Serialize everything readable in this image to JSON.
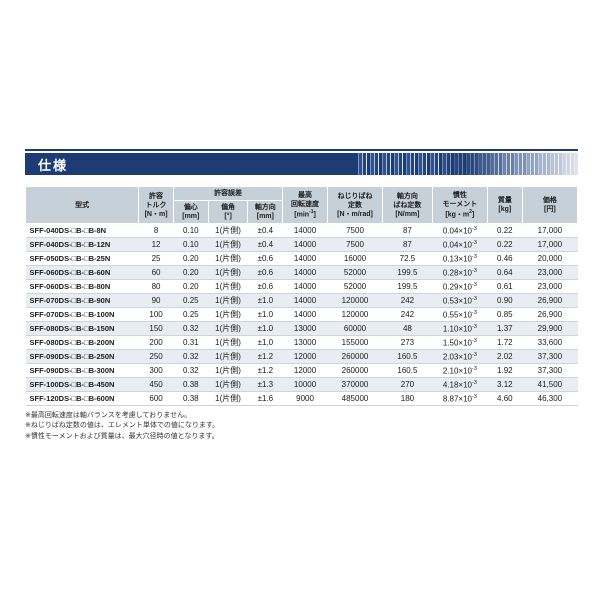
{
  "page": {
    "title": "仕様"
  },
  "colors": {
    "accent_navy": "#1e3c74",
    "header_bg": "#c6d0d9",
    "row_shade": "#e9edf2"
  },
  "table": {
    "headers": {
      "model": "型式",
      "torque": "許容\nトルク\n[N・m]",
      "tolerance_group": "許容誤差",
      "eccentricity": "偏心\n[mm]",
      "angular": "偏角\n[°]",
      "axial": "軸方向\n[mm]",
      "max_speed": "最高\n回転速度\n[min^{-1}]",
      "torsional_spring": "ねじりばね\n定数\n[N・m/rad]",
      "axial_spring": "軸方向\nばね定数\n[N/mm]",
      "inertia": "慣性\nモーメント\n[kg・m^{2}]",
      "mass": "質量\n[kg]",
      "price": "価格\n[円]"
    },
    "rows": [
      {
        "model": "SFF-040DS-□B-□B-8N",
        "torque": "8",
        "eccentricity": "0.10",
        "angular": "1(片側)",
        "axial": "±0.4",
        "max_speed": "14000",
        "torsional_spring": "7500",
        "axial_spring": "87",
        "inertia": "0.04×10^{-3}",
        "mass": "0.22",
        "price": "17,000"
      },
      {
        "model": "SFF-040DS-□B-□B-12N",
        "torque": "12",
        "eccentricity": "0.10",
        "angular": "1(片側)",
        "axial": "±0.4",
        "max_speed": "14000",
        "torsional_spring": "7500",
        "axial_spring": "87",
        "inertia": "0.04×10^{-3}",
        "mass": "0.22",
        "price": "17,000"
      },
      {
        "model": "SFF-050DS-□B-□B-25N",
        "torque": "25",
        "eccentricity": "0.20",
        "angular": "1(片側)",
        "axial": "±0.6",
        "max_speed": "14000",
        "torsional_spring": "16000",
        "axial_spring": "72.5",
        "inertia": "0.13×10^{-3}",
        "mass": "0.46",
        "price": "20,000"
      },
      {
        "model": "SFF-060DS-□B-□B-60N",
        "torque": "60",
        "eccentricity": "0.20",
        "angular": "1(片側)",
        "axial": "±0.6",
        "max_speed": "14000",
        "torsional_spring": "52000",
        "axial_spring": "199.5",
        "inertia": "0.28×10^{-3}",
        "mass": "0.64",
        "price": "23,000"
      },
      {
        "model": "SFF-060DS-□B-□B-80N",
        "torque": "80",
        "eccentricity": "0.20",
        "angular": "1(片側)",
        "axial": "±0.6",
        "max_speed": "14000",
        "torsional_spring": "52000",
        "axial_spring": "199.5",
        "inertia": "0.29×10^{-3}",
        "mass": "0.61",
        "price": "23,000"
      },
      {
        "model": "SFF-070DS-□B-□B-90N",
        "torque": "90",
        "eccentricity": "0.25",
        "angular": "1(片側)",
        "axial": "±1.0",
        "max_speed": "14000",
        "torsional_spring": "120000",
        "axial_spring": "242",
        "inertia": "0.53×10^{-3}",
        "mass": "0.90",
        "price": "26,900"
      },
      {
        "model": "SFF-070DS-□B-□B-100N",
        "torque": "100",
        "eccentricity": "0.25",
        "angular": "1(片側)",
        "axial": "±1.0",
        "max_speed": "14000",
        "torsional_spring": "120000",
        "axial_spring": "242",
        "inertia": "0.55×10^{-3}",
        "mass": "0.85",
        "price": "26,900"
      },
      {
        "model": "SFF-080DS-□B-□B-150N",
        "torque": "150",
        "eccentricity": "0.32",
        "angular": "1(片側)",
        "axial": "±1.0",
        "max_speed": "13000",
        "torsional_spring": "60000",
        "axial_spring": "48",
        "inertia": "1.10×10^{-3}",
        "mass": "1.37",
        "price": "29,900"
      },
      {
        "model": "SFF-080DS-□B-□B-200N",
        "torque": "200",
        "eccentricity": "0.31",
        "angular": "1(片側)",
        "axial": "±1.0",
        "max_speed": "13000",
        "torsional_spring": "155000",
        "axial_spring": "273",
        "inertia": "1.50×10^{-3}",
        "mass": "1.72",
        "price": "33,600"
      },
      {
        "model": "SFF-090DS-□B-□B-250N",
        "torque": "250",
        "eccentricity": "0.32",
        "angular": "1(片側)",
        "axial": "±1.2",
        "max_speed": "12000",
        "torsional_spring": "260000",
        "axial_spring": "160.5",
        "inertia": "2.03×10^{-3}",
        "mass": "2.02",
        "price": "37,300"
      },
      {
        "model": "SFF-090DS-□B-□B-300N",
        "torque": "300",
        "eccentricity": "0.32",
        "angular": "1(片側)",
        "axial": "±1.2",
        "max_speed": "12000",
        "torsional_spring": "260000",
        "axial_spring": "160.5",
        "inertia": "2.10×10^{-3}",
        "mass": "1.92",
        "price": "37,300"
      },
      {
        "model": "SFF-100DS-□B-□B-450N",
        "torque": "450",
        "eccentricity": "0.38",
        "angular": "1(片側)",
        "axial": "±1.3",
        "max_speed": "10000",
        "torsional_spring": "370000",
        "axial_spring": "270",
        "inertia": "4.18×10^{-3}",
        "mass": "3.12",
        "price": "41,500"
      },
      {
        "model": "SFF-120DS-□B-□B-600N",
        "torque": "600",
        "eccentricity": "0.38",
        "angular": "1(片側)",
        "axial": "±1.6",
        "max_speed": "9000",
        "torsional_spring": "485000",
        "axial_spring": "180",
        "inertia": "8.87×10^{-3}",
        "mass": "4.60",
        "price": "46,300"
      }
    ]
  },
  "footnotes": [
    "※最高回転速度は軸バランスを考慮しておりません。",
    "※ねじりばね定数の値は、エレメント単体での値になります。",
    "※慣性モーメントおよび質量は、最大穴径時の値となります。"
  ]
}
